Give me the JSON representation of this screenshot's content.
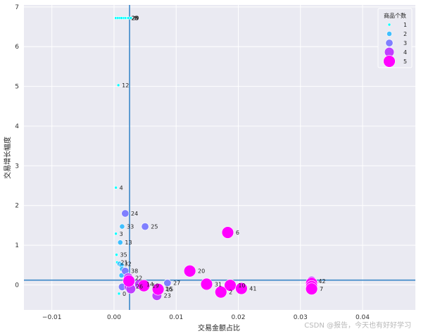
{
  "chart_data": {
    "type": "scatter",
    "title": "",
    "xlabel": "交易金额占比",
    "ylabel": "交易增长幅度",
    "xlim": [
      -0.0145,
      0.0485
    ],
    "ylim": [
      -0.63,
      7.05
    ],
    "xticks": [
      -0.01,
      0.0,
      0.01,
      0.02,
      0.03,
      0.04
    ],
    "xtick_labels": [
      "−0.01",
      "0.00",
      "0.01",
      "0.02",
      "0.03",
      "0.04"
    ],
    "yticks": [
      0,
      1,
      2,
      3,
      4,
      5,
      6,
      7
    ],
    "ytick_labels": [
      "0",
      "1",
      "2",
      "3",
      "4",
      "5",
      "6",
      "7"
    ],
    "grid": true,
    "background": "#eaeaf2",
    "reference_lines": {
      "x": 0.0025,
      "y": 0.12,
      "color": "#3a87c8"
    },
    "legend": {
      "title": "商品个数",
      "placement": "top-right",
      "entries": [
        {
          "label": "1",
          "count": 1,
          "color": "#00ffff"
        },
        {
          "label": "2",
          "count": 2,
          "color": "#3fbfff"
        },
        {
          "label": "3",
          "count": 3,
          "color": "#7f7fff"
        },
        {
          "label": "4",
          "count": 4,
          "color": "#bf3fff"
        },
        {
          "label": "5",
          "count": 5,
          "color": "#ff00ff"
        }
      ]
    },
    "points": [
      {
        "label": "",
        "x": 0.0003,
        "y": 6.72,
        "count": 1
      },
      {
        "label": "",
        "x": 0.0006,
        "y": 6.72,
        "count": 1
      },
      {
        "label": "",
        "x": 0.0009,
        "y": 6.72,
        "count": 1
      },
      {
        "label": "",
        "x": 0.0012,
        "y": 6.72,
        "count": 1
      },
      {
        "label": "",
        "x": 0.0016,
        "y": 6.72,
        "count": 1
      },
      {
        "label": "",
        "x": 0.0019,
        "y": 6.72,
        "count": 1
      },
      {
        "label": "28",
        "x": 0.0022,
        "y": 6.72,
        "count": 1
      },
      {
        "label": "29",
        "x": 0.0023,
        "y": 6.72,
        "count": 1
      },
      {
        "label": "8",
        "x": 0.0027,
        "y": 6.72,
        "count": 1
      },
      {
        "label": "12",
        "x": 0.0007,
        "y": 5.03,
        "count": 1
      },
      {
        "label": "4",
        "x": 0.0003,
        "y": 2.45,
        "count": 1
      },
      {
        "label": "24",
        "x": 0.0018,
        "y": 1.8,
        "count": 3
      },
      {
        "label": "25",
        "x": 0.005,
        "y": 1.47,
        "count": 3
      },
      {
        "label": "33",
        "x": 0.0013,
        "y": 1.47,
        "count": 2
      },
      {
        "label": "3",
        "x": 0.0003,
        "y": 1.29,
        "count": 1
      },
      {
        "label": "13",
        "x": 0.001,
        "y": 1.07,
        "count": 2
      },
      {
        "label": "6",
        "x": 0.0183,
        "y": 1.32,
        "count": 5
      },
      {
        "label": "35",
        "x": 0.0004,
        "y": 0.76,
        "count": 1
      },
      {
        "label": "21",
        "x": 0.0005,
        "y": 0.57,
        "count": 1
      },
      {
        "label": "32",
        "x": 0.0009,
        "y": 0.53,
        "count": 2
      },
      {
        "label": "",
        "x": 0.0012,
        "y": 0.5,
        "count": 2
      },
      {
        "label": "",
        "x": 0.0013,
        "y": 0.4,
        "count": 2
      },
      {
        "label": "38",
        "x": 0.0018,
        "y": 0.35,
        "count": 3
      },
      {
        "label": "",
        "x": 0.0012,
        "y": 0.24,
        "count": 2
      },
      {
        "label": "22",
        "x": 0.0023,
        "y": 0.18,
        "count": 4
      },
      {
        "label": "",
        "x": 0.0024,
        "y": 0.1,
        "count": 5
      },
      {
        "label": "20",
        "x": 0.0122,
        "y": 0.35,
        "count": 5
      },
      {
        "label": "27",
        "x": 0.0086,
        "y": 0.05,
        "count": 3
      },
      {
        "label": "31",
        "x": 0.0149,
        "y": 0.02,
        "count": 5
      },
      {
        "label": "10",
        "x": 0.0187,
        "y": -0.01,
        "count": 5
      },
      {
        "label": "41",
        "x": 0.0205,
        "y": -0.09,
        "count": 5
      },
      {
        "label": "2",
        "x": 0.0172,
        "y": -0.18,
        "count": 5
      },
      {
        "label": "14",
        "x": 0.0041,
        "y": 0.02,
        "count": 4
      },
      {
        "label": "19",
        "x": 0.0048,
        "y": -0.02,
        "count": 5
      },
      {
        "label": "16",
        "x": 0.0071,
        "y": -0.1,
        "count": 4
      },
      {
        "label": "15",
        "x": 0.0071,
        "y": -0.11,
        "count": 5
      },
      {
        "label": "23",
        "x": 0.0069,
        "y": -0.27,
        "count": 4
      },
      {
        "label": "26",
        "x": 0.0024,
        "y": -0.04,
        "count": 4
      },
      {
        "label": "",
        "x": 0.0027,
        "y": -0.1,
        "count": 4
      },
      {
        "label": "",
        "x": 0.0013,
        "y": -0.05,
        "count": 3
      },
      {
        "label": "0",
        "x": 0.0008,
        "y": -0.22,
        "count": 1
      },
      {
        "label": "42",
        "x": 0.0318,
        "y": 0.1,
        "count": 4
      },
      {
        "label": "",
        "x": 0.0318,
        "y": 0.04,
        "count": 5
      },
      {
        "label": "",
        "x": 0.0318,
        "y": -0.04,
        "count": 5
      },
      {
        "label": "7",
        "x": 0.0318,
        "y": -0.1,
        "count": 5
      }
    ]
  },
  "watermark": "CSDN @报告，今天也有好好学习"
}
